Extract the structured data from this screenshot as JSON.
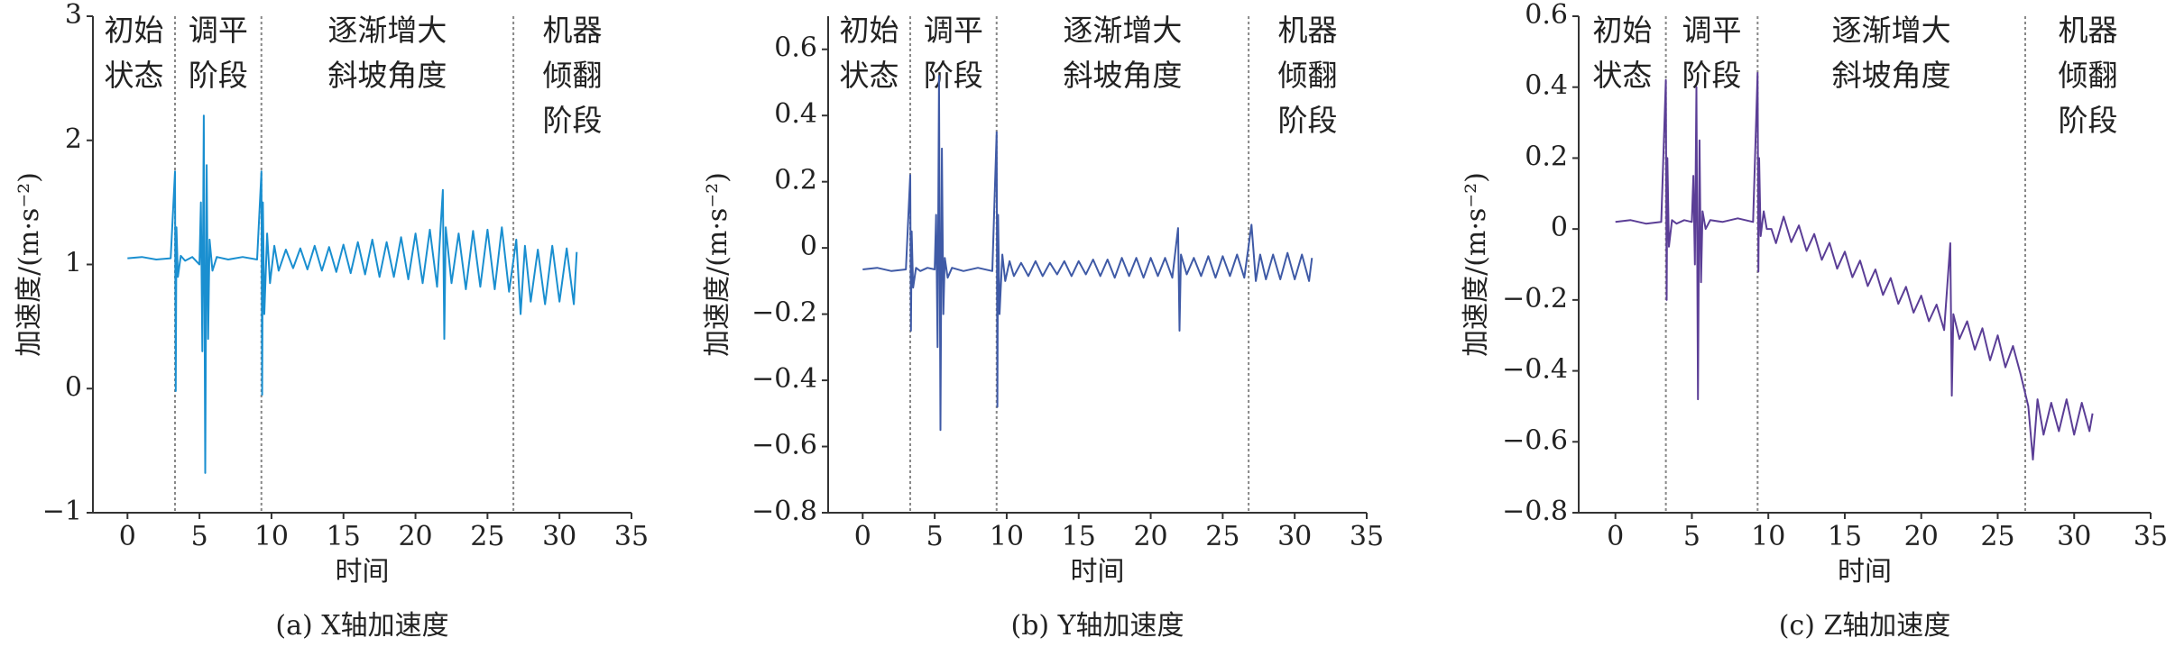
{
  "chart_data": [
    {
      "type": "line",
      "title": "(a) X轴加速度",
      "xlabel": "时间",
      "ylabel": "加速度/(m·s⁻²)",
      "color": "#1a8fd0",
      "xlim": [
        -2.4,
        35
      ],
      "ylim": [
        -1,
        3
      ],
      "xticks": [
        0,
        5,
        10,
        15,
        20,
        25,
        30,
        35
      ],
      "yticks": [
        {
          "value": -1,
          "label": "−1"
        },
        0,
        1,
        2,
        3
      ],
      "phase_bounds": [
        3.3,
        9.3,
        26.8
      ],
      "phases": [
        [
          "初始",
          "状态"
        ],
        [
          "调平",
          "阶段"
        ],
        [
          "逐渐增大",
          "斜坡角度"
        ],
        [
          "机器",
          "倾翻",
          "阶段"
        ]
      ],
      "x": [
        0,
        1,
        2,
        3,
        3.3,
        3.35,
        3.4,
        3.5,
        3.7,
        4,
        4.5,
        5,
        5.1,
        5.2,
        5.3,
        5.4,
        5.5,
        5.6,
        5.7,
        5.9,
        6.2,
        7,
        8,
        9,
        9.3,
        9.35,
        9.4,
        9.5,
        9.7,
        9.9,
        10.2,
        10.5,
        11,
        11.5,
        12,
        12.5,
        13,
        13.5,
        14,
        14.5,
        15,
        15.5,
        16,
        16.5,
        17,
        17.5,
        18,
        18.5,
        19,
        19.5,
        20,
        20.5,
        21,
        21.5,
        21.9,
        22,
        22.1,
        22.5,
        23,
        23.5,
        24,
        24.5,
        25,
        25.5,
        26,
        26.5,
        27,
        27.3,
        27.6,
        28,
        28.5,
        29,
        29.5,
        30,
        30.5,
        31,
        31.2
      ],
      "values": [
        1.05,
        1.06,
        1.04,
        1.05,
        1.75,
        -0.02,
        1.3,
        0.9,
        1.07,
        1.03,
        1.06,
        1.0,
        1.5,
        0.3,
        2.2,
        -0.68,
        1.8,
        0.4,
        1.2,
        0.95,
        1.06,
        1.04,
        1.06,
        1.04,
        1.75,
        -0.05,
        1.5,
        0.6,
        1.25,
        0.85,
        1.15,
        0.95,
        1.12,
        0.97,
        1.13,
        0.96,
        1.15,
        0.95,
        1.14,
        0.94,
        1.16,
        0.93,
        1.18,
        0.92,
        1.2,
        0.9,
        1.18,
        0.9,
        1.22,
        0.88,
        1.25,
        0.85,
        1.28,
        0.82,
        1.6,
        0.4,
        1.3,
        0.85,
        1.25,
        0.8,
        1.27,
        0.82,
        1.28,
        0.8,
        1.3,
        0.78,
        1.2,
        0.6,
        1.15,
        0.7,
        1.12,
        0.68,
        1.15,
        0.7,
        1.13,
        0.68,
        1.1
      ]
    },
    {
      "type": "line",
      "title": "(b) Y轴加速度",
      "xlabel": "时间",
      "ylabel": "加速度/(m·s⁻²)",
      "color": "#3f5aa6",
      "xlim": [
        -2.4,
        35
      ],
      "ylim": [
        -0.8,
        0.7
      ],
      "xticks": [
        0,
        5,
        10,
        15,
        20,
        25,
        30,
        35
      ],
      "yticks": [
        {
          "value": -0.8,
          "label": "−0.8"
        },
        {
          "value": -0.6,
          "label": "−0.6"
        },
        {
          "value": -0.4,
          "label": "−0.4"
        },
        {
          "value": -0.2,
          "label": "−0.2"
        },
        0,
        0.2,
        0.4,
        0.6
      ],
      "phase_bounds": [
        3.3,
        9.3,
        26.8
      ],
      "phases": [
        [
          "初始",
          "状态"
        ],
        [
          "调平",
          "阶段"
        ],
        [
          "逐渐增大",
          "斜坡角度"
        ],
        [
          "机器",
          "倾翻",
          "阶段"
        ]
      ],
      "x": [
        0,
        1,
        2,
        3,
        3.3,
        3.35,
        3.4,
        3.5,
        3.7,
        4,
        4.5,
        5,
        5.1,
        5.2,
        5.3,
        5.4,
        5.5,
        5.6,
        5.7,
        5.9,
        6.2,
        7,
        8,
        9,
        9.3,
        9.35,
        9.4,
        9.5,
        9.7,
        9.9,
        10.2,
        10.5,
        11,
        11.5,
        12,
        12.5,
        13,
        13.5,
        14,
        14.5,
        15,
        15.5,
        16,
        16.5,
        17,
        17.5,
        18,
        18.5,
        19,
        19.5,
        20,
        20.5,
        21,
        21.5,
        21.9,
        22,
        22.1,
        22.5,
        23,
        23.5,
        24,
        24.5,
        25,
        25.5,
        26,
        26.5,
        27,
        27.3,
        27.6,
        28,
        28.5,
        29,
        29.5,
        30,
        30.5,
        31,
        31.2
      ],
      "values": [
        -0.065,
        -0.06,
        -0.07,
        -0.065,
        0.22,
        -0.25,
        0.05,
        -0.12,
        -0.06,
        -0.07,
        -0.06,
        -0.065,
        0.1,
        -0.3,
        0.52,
        -0.55,
        0.3,
        -0.2,
        -0.03,
        -0.09,
        -0.06,
        -0.07,
        -0.06,
        -0.07,
        0.35,
        -0.48,
        0.1,
        -0.2,
        -0.02,
        -0.1,
        -0.04,
        -0.085,
        -0.045,
        -0.085,
        -0.04,
        -0.085,
        -0.045,
        -0.08,
        -0.04,
        -0.085,
        -0.04,
        -0.08,
        -0.035,
        -0.085,
        -0.035,
        -0.09,
        -0.03,
        -0.085,
        -0.03,
        -0.09,
        -0.03,
        -0.085,
        -0.03,
        -0.09,
        0.06,
        -0.25,
        -0.02,
        -0.08,
        -0.03,
        -0.085,
        -0.025,
        -0.09,
        -0.025,
        -0.085,
        -0.02,
        -0.09,
        0.07,
        -0.1,
        -0.02,
        -0.095,
        -0.02,
        -0.095,
        -0.015,
        -0.095,
        -0.02,
        -0.1,
        -0.03
      ]
    },
    {
      "type": "line",
      "title": "(c) Z轴加速度",
      "xlabel": "时间",
      "ylabel": "加速度/(m·s⁻²)",
      "color": "#5b3e96",
      "xlim": [
        -2.4,
        35
      ],
      "ylim": [
        -0.8,
        0.6
      ],
      "xticks": [
        0,
        5,
        10,
        15,
        20,
        25,
        30,
        35
      ],
      "yticks": [
        {
          "value": -0.8,
          "label": "−0.8"
        },
        {
          "value": -0.6,
          "label": "−0.6"
        },
        {
          "value": -0.4,
          "label": "−0.4"
        },
        {
          "value": -0.2,
          "label": "−0.2"
        },
        0,
        0.2,
        0.4,
        0.6
      ],
      "phase_bounds": [
        3.3,
        9.3,
        26.8
      ],
      "phases": [
        [
          "初始",
          "状态"
        ],
        [
          "调平",
          "阶段"
        ],
        [
          "逐渐增大",
          "斜坡角度"
        ],
        [
          "机器",
          "倾翻",
          "阶段"
        ]
      ],
      "x": [
        0,
        1,
        2,
        3,
        3.3,
        3.35,
        3.4,
        3.5,
        3.7,
        4,
        4.5,
        5,
        5.1,
        5.2,
        5.3,
        5.4,
        5.5,
        5.6,
        5.7,
        5.9,
        6.2,
        7,
        8,
        9,
        9.3,
        9.35,
        9.4,
        9.5,
        9.7,
        9.9,
        10.2,
        10.5,
        11,
        11.5,
        12,
        12.5,
        13,
        13.5,
        14,
        14.5,
        15,
        15.5,
        16,
        16.5,
        17,
        17.5,
        18,
        18.5,
        19,
        19.5,
        20,
        20.5,
        21,
        21.5,
        21.9,
        22,
        22.1,
        22.5,
        23,
        23.5,
        24,
        24.5,
        25,
        25.5,
        26,
        26.5,
        27,
        27.3,
        27.6,
        28,
        28.5,
        29,
        29.5,
        30,
        30.5,
        31,
        31.2
      ],
      "values": [
        0.02,
        0.025,
        0.015,
        0.02,
        0.42,
        -0.2,
        0.2,
        -0.05,
        0.025,
        0.015,
        0.025,
        0.02,
        0.15,
        -0.1,
        0.4,
        -0.48,
        0.25,
        -0.15,
        0.05,
        0.0,
        0.025,
        0.02,
        0.03,
        0.02,
        0.44,
        -0.12,
        0.2,
        -0.02,
        0.05,
        0.0,
        0.0,
        -0.04,
        0.035,
        -0.037,
        0.01,
        -0.062,
        -0.014,
        -0.087,
        -0.039,
        -0.112,
        -0.064,
        -0.136,
        -0.089,
        -0.161,
        -0.114,
        -0.186,
        -0.138,
        -0.211,
        -0.163,
        -0.236,
        -0.188,
        -0.26,
        -0.213,
        -0.285,
        -0.04,
        -0.47,
        -0.24,
        -0.31,
        -0.26,
        -0.34,
        -0.28,
        -0.37,
        -0.3,
        -0.39,
        -0.33,
        -0.41,
        -0.5,
        -0.65,
        -0.48,
        -0.58,
        -0.49,
        -0.57,
        -0.48,
        -0.58,
        -0.49,
        -0.57,
        -0.52
      ]
    }
  ]
}
